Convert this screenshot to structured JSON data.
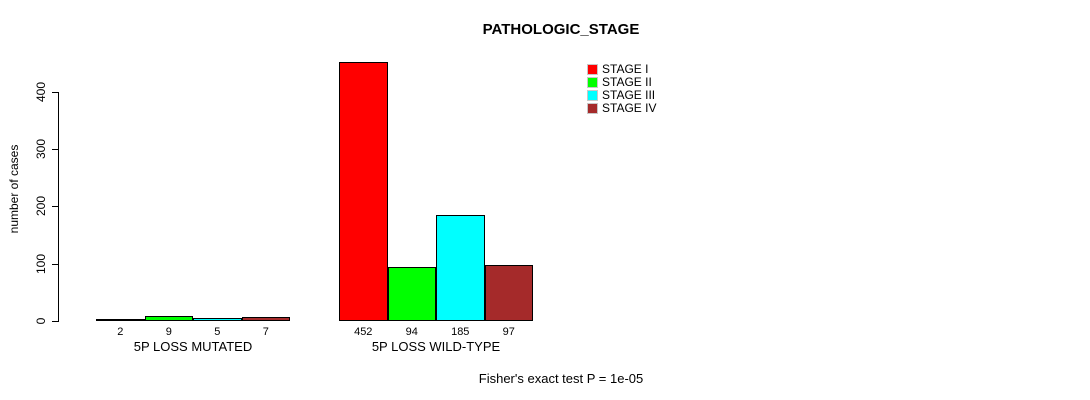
{
  "chart_data": {
    "type": "bar",
    "title": "PATHOLOGIC_STAGE",
    "ylabel": "number of cases",
    "xlabel": "",
    "annotation": "Fisher's exact test P = 1e-05",
    "categories": [
      "5P LOSS MUTATED",
      "5P LOSS WILD-TYPE"
    ],
    "series": [
      {
        "name": "STAGE I",
        "color": "#FF0000",
        "values": [
          2,
          452
        ]
      },
      {
        "name": "STAGE II",
        "color": "#00FF00",
        "values": [
          9,
          94
        ]
      },
      {
        "name": "STAGE III",
        "color": "#00FFFF",
        "values": [
          5,
          185
        ]
      },
      {
        "name": "STAGE IV",
        "color": "#A52A2A",
        "values": [
          7,
          97
        ]
      }
    ],
    "yticks": [
      0,
      100,
      200,
      300,
      400
    ],
    "ylim": [
      0,
      460
    ],
    "grid": false,
    "legend_position": "top-right",
    "bar_value_labels": true
  }
}
